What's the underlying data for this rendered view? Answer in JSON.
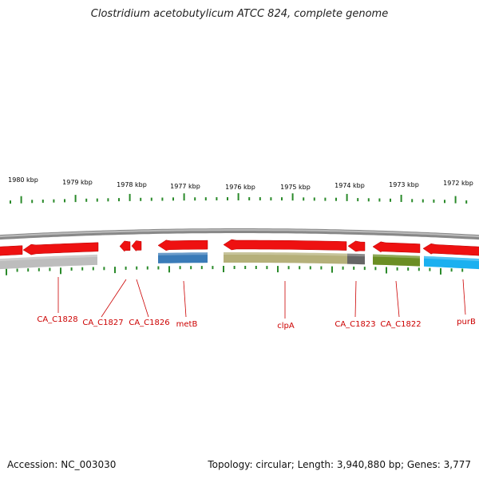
{
  "title": "Clostridium acetobutylicum ATCC 824, complete genome",
  "footer": {
    "accession": "Accession: NC_003030",
    "summary": "Topology: circular; Length: 3,940,880 bp; Genes: 3,777"
  },
  "ruler": {
    "labels": [
      "1980 kbp",
      "1979 kbp",
      "1978 kbp",
      "1977 kbp",
      "1976 kbp",
      "1975 kbp",
      "1974 kbp",
      "1973 kbp",
      "1972 kbp"
    ]
  },
  "colors": {
    "gene_red": "#ee1111",
    "tick_green": "#2a8a2a",
    "backbone_gray": "#888888",
    "label_red": "#cc0000",
    "blue_feature": "#3a7bb8",
    "khaki_feature": "#b5b07a",
    "dark_gray_feature": "#666666",
    "olive_feature": "#6b8e23",
    "cyan_feature": "#1ab0f0",
    "light_gray_feature": "#bdbdbd"
  },
  "genes": [
    {
      "name": "CA_C1828",
      "strand": "reverse"
    },
    {
      "name": "CA_C1827",
      "strand": "reverse"
    },
    {
      "name": "CA_C1826",
      "strand": "reverse"
    },
    {
      "name": "metB",
      "strand": "reverse"
    },
    {
      "name": "clpA",
      "strand": "reverse"
    },
    {
      "name": "CA_C1823",
      "strand": "reverse"
    },
    {
      "name": "CA_C1822",
      "strand": "reverse"
    },
    {
      "name": "purB",
      "strand": "reverse"
    }
  ]
}
